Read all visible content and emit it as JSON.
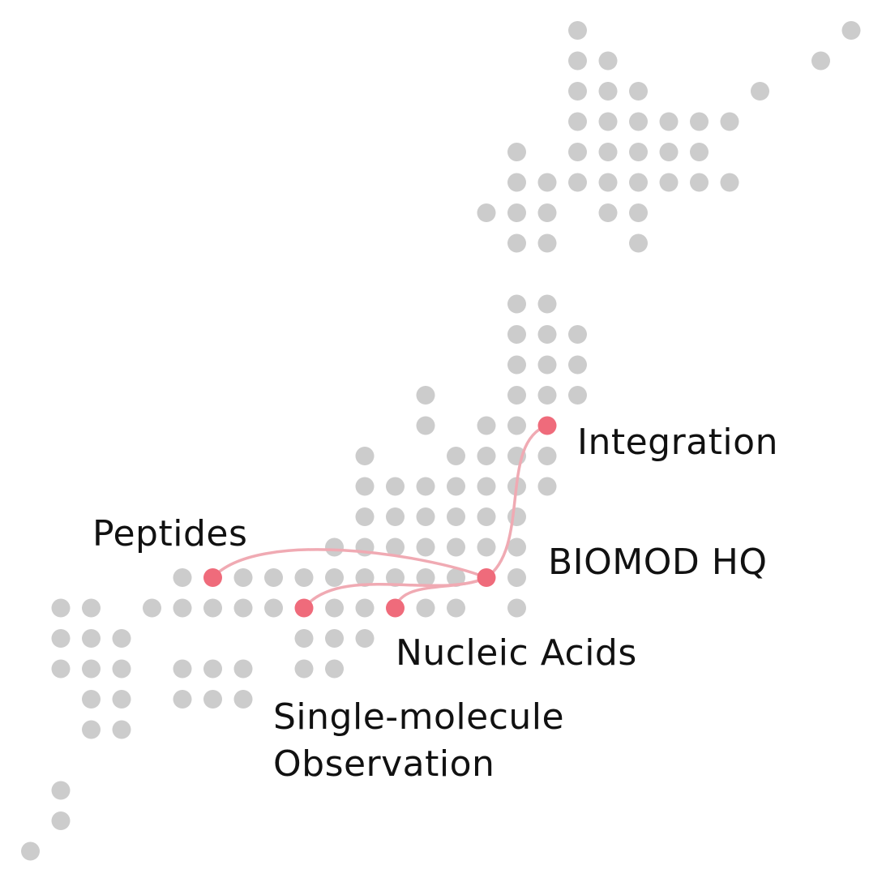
{
  "diagram": {
    "colors": {
      "dot": "#cccccc",
      "site": "#ef6b7b",
      "link": "#f0aab3",
      "text": "#111111"
    },
    "hub": "BIOMOD HQ",
    "labels": {
      "integration": "Integration",
      "hq": "BIOMOD HQ",
      "peptides": "Peptides",
      "nucleic_acids": "Nucleic Acids",
      "single_molecule_line1": "Single-molecule",
      "single_molecule_line2": "Observation"
    },
    "connections": [
      "Integration",
      "Peptides",
      "Single-molecule Observation",
      "Nucleic Acids"
    ]
  }
}
